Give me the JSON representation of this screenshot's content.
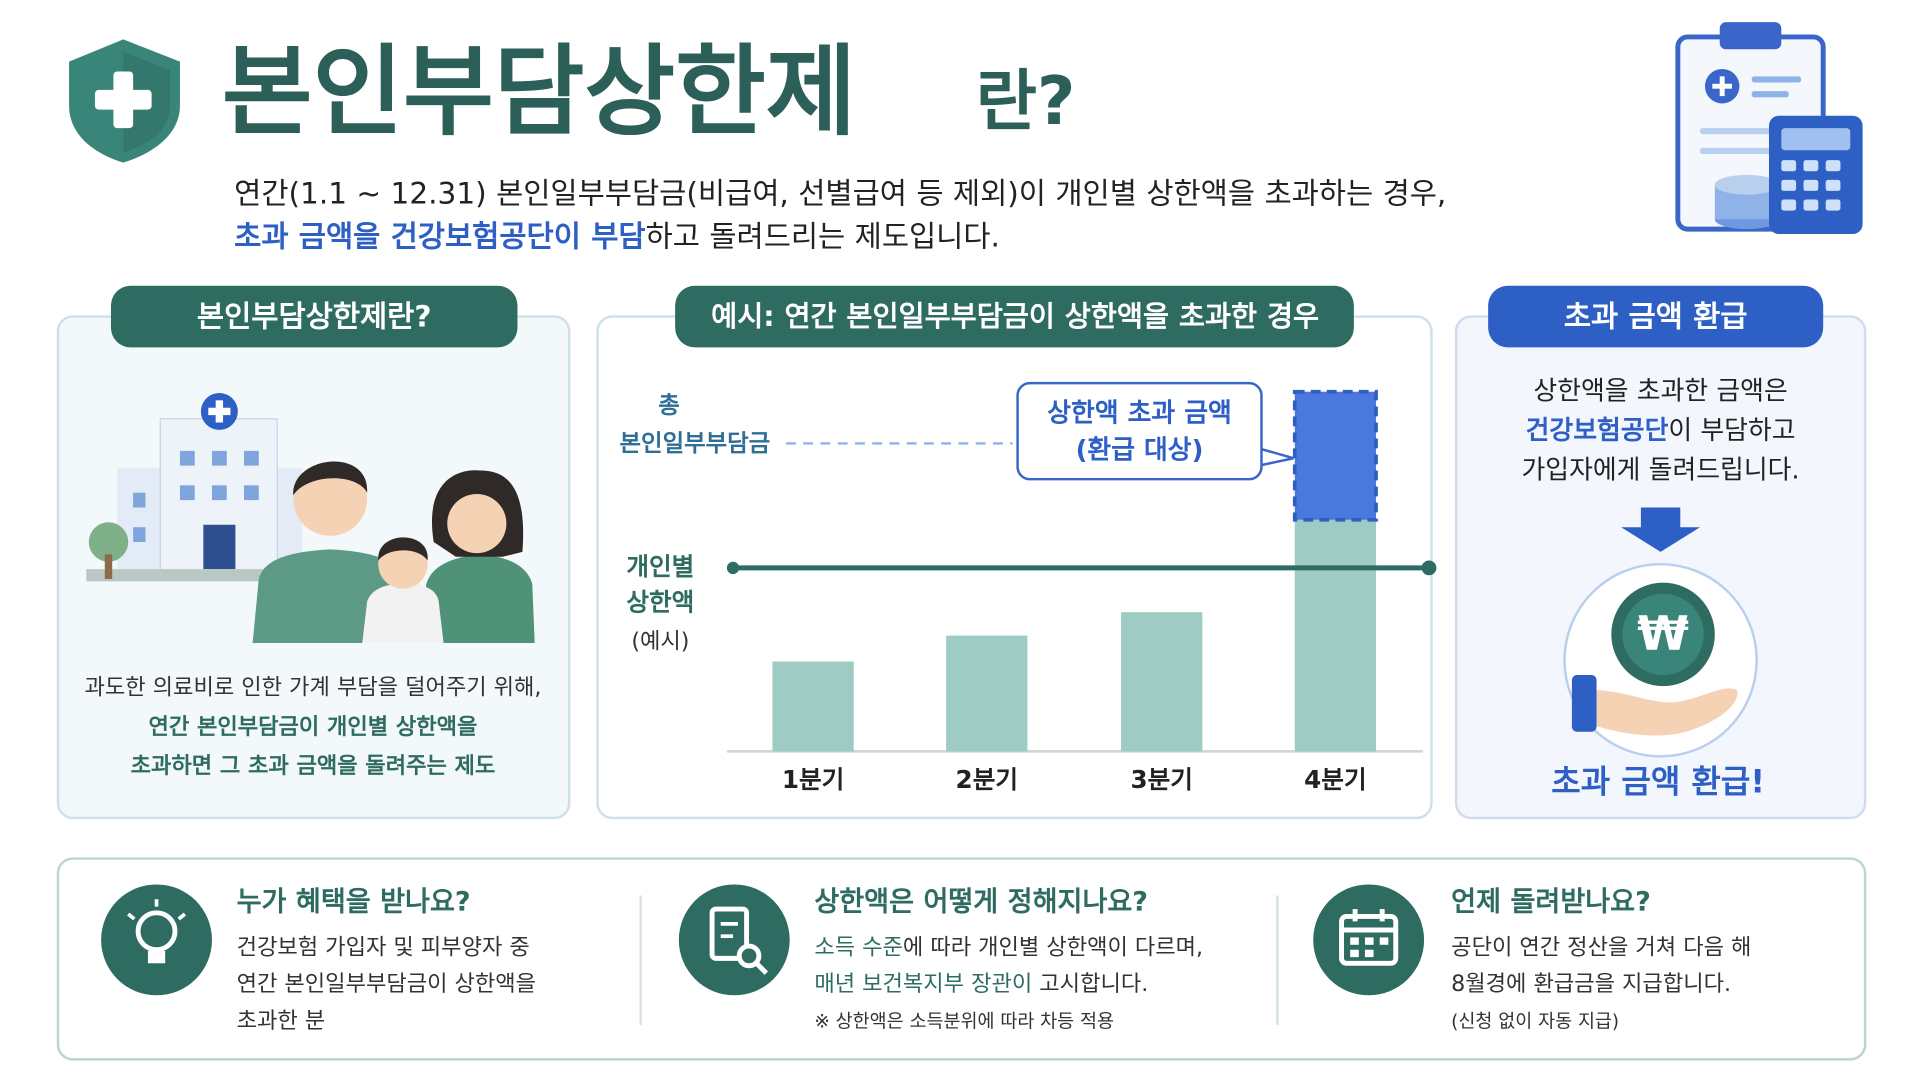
{
  "header": {
    "title_main": "본인부담상한제",
    "title_suffix": "란?",
    "lines": [
      [
        {
          "text": "연간(1.1 ~ 12.31) 본인일부부담금(비급여, 선별급여 등 제외)이 개인별 상한액을 초과하는 경우,",
          "highlight": false
        }
      ],
      [
        {
          "text": "초과 금액을 건강보험공단이 부담",
          "highlight": true
        },
        {
          "text": "하고 돌려드리는 제도입니다.",
          "highlight": false
        }
      ]
    ]
  },
  "left_panel": {
    "heading": "본인부담상한제란?",
    "lines": [
      [
        {
          "text": "과도한 의료비로 인한 가계 부담을 덜어주기 위해,",
          "highlight": false
        }
      ],
      [
        {
          "text": "연간 본인부담금이 개인별 상한액을",
          "highlight": true
        }
      ],
      [
        {
          "text": "초과하면 그 초과 금액을 돌려주는 제도",
          "highlight": true
        }
      ]
    ]
  },
  "chart_panel": {
    "heading": "예시: 연간 본인일부부담금이 상한액을 초과한 경우",
    "total_label": [
      "총",
      "본인일부부담금"
    ],
    "limit_label": [
      "개인별",
      "상한액",
      "(예시)"
    ],
    "callout": [
      "상한액 초과 금액",
      "(환급 대상)"
    ]
  },
  "chart_data": {
    "type": "bar",
    "categories": [
      "1분기",
      "2분기",
      "3분기",
      "4분기"
    ],
    "series": [
      {
        "color": "#9ecbc4",
        "values": [
          73,
          94,
          113,
          188
        ]
      },
      {
        "color": "#4a78dc",
        "values": [
          null,
          null,
          null,
          104
        ],
        "style": "dashed"
      }
    ],
    "limit_value": 149,
    "limit_color": "#2e6b60"
  },
  "right_panel": {
    "heading": "초과 금액 환급",
    "lines": [
      [
        {
          "text": "상한액을 초과한 금액은",
          "highlight": false
        }
      ],
      [
        {
          "text": "건강보험공단",
          "highlight": true
        },
        {
          "text": "이 부담하고",
          "highlight": false
        }
      ],
      [
        {
          "text": "가입자에게 돌려드립니다.",
          "highlight": false
        }
      ]
    ],
    "coin": "₩",
    "footer": "초과 금액 환급!"
  },
  "info_items": [
    {
      "title": "누가 혜택을 받나요?",
      "lines": [
        [
          {
            "text": "건강보험 가입자 및 피부양자 중",
            "highlight": false
          }
        ],
        [
          {
            "text": "연간 본인일부부담금이 상한액을",
            "highlight": false
          }
        ],
        [
          {
            "text": "초과한 분",
            "highlight": false
          }
        ]
      ]
    },
    {
      "title": "상한액은 어떻게 정해지나요?",
      "lines": [
        [
          {
            "text": "소득 수준",
            "highlight": true
          },
          {
            "text": "에 따라 개인별 상한액이 다르며,",
            "highlight": false
          }
        ],
        [
          {
            "text": "매년 보건복지부 장관이",
            "highlight": true
          },
          {
            "text": " 고시합니다.",
            "highlight": false
          }
        ]
      ],
      "note": "※ 상한액은 소득분위에 따라 차등 적용"
    },
    {
      "title": "언제 돌려받나요?",
      "lines": [
        [
          {
            "text": "공단이 연간 정산을 거쳐 다음 해",
            "highlight": false
          }
        ],
        [
          {
            "text": "8월경에 환급금을 지급합니다.",
            "highlight": false
          }
        ]
      ],
      "note": "(신청 없이 자동 지급)"
    }
  ]
}
